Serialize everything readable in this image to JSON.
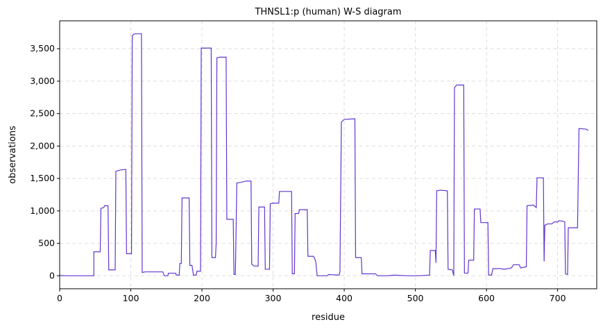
{
  "chart_data": {
    "type": "line",
    "title": "THNSL1:p (human) W-S diagram",
    "xlabel": "residue",
    "ylabel": "observations",
    "color": "#6035d0",
    "grid": true,
    "x": [
      0,
      10,
      48,
      48,
      57,
      58,
      62,
      63,
      68,
      69,
      78,
      79,
      85,
      93,
      94,
      101,
      102,
      105,
      115,
      116,
      120,
      145,
      147,
      152,
      153,
      163,
      164,
      168,
      169,
      171,
      172,
      182,
      183,
      186,
      188,
      192,
      193,
      198,
      199,
      213,
      214,
      219,
      220,
      221,
      225,
      234,
      235,
      244,
      245,
      247,
      249,
      255,
      262,
      269,
      270,
      273,
      279,
      280,
      288,
      289,
      295,
      296,
      300,
      308,
      309,
      326,
      327,
      330,
      331,
      336,
      337,
      348,
      349,
      357,
      360,
      362,
      376,
      378,
      393,
      394,
      396,
      400,
      415,
      416,
      424,
      425,
      444,
      447,
      460,
      470,
      490,
      505,
      520,
      521,
      528,
      529,
      530,
      535,
      545,
      546,
      552,
      554,
      555,
      558,
      568,
      569,
      574,
      575,
      582,
      583,
      591,
      592,
      602,
      603,
      607,
      609,
      620,
      625,
      635,
      638,
      646,
      648,
      656,
      657,
      666,
      670,
      671,
      680,
      681,
      682,
      686,
      692,
      695,
      700,
      702,
      708,
      710,
      711,
      714,
      715,
      728,
      730,
      740,
      743
    ],
    "values": [
      5,
      0,
      0,
      370,
      370,
      1040,
      1050,
      1080,
      1080,
      90,
      90,
      1610,
      1630,
      1640,
      340,
      340,
      3700,
      3730,
      3730,
      50,
      60,
      60,
      0,
      0,
      40,
      40,
      10,
      10,
      190,
      190,
      1200,
      1200,
      160,
      160,
      10,
      10,
      70,
      70,
      3510,
      3510,
      280,
      280,
      500,
      3360,
      3370,
      3370,
      870,
      870,
      20,
      20,
      1430,
      1440,
      1460,
      1460,
      180,
      150,
      150,
      1060,
      1060,
      100,
      100,
      1110,
      1120,
      1120,
      1300,
      1300,
      30,
      30,
      960,
      960,
      1020,
      1020,
      300,
      300,
      220,
      0,
      0,
      20,
      10,
      70,
      2370,
      2410,
      2420,
      280,
      280,
      30,
      30,
      0,
      0,
      10,
      0,
      0,
      10,
      390,
      390,
      200,
      1310,
      1320,
      1310,
      100,
      90,
      0,
      2900,
      2940,
      2940,
      40,
      40,
      240,
      240,
      1030,
      1030,
      820,
      820,
      10,
      10,
      110,
      110,
      100,
      120,
      170,
      170,
      120,
      140,
      1080,
      1090,
      1050,
      1510,
      1510,
      220,
      780,
      800,
      800,
      830,
      830,
      850,
      840,
      830,
      30,
      20,
      740,
      740,
      2270,
      2260,
      2240
    ],
    "xlim": [
      0,
      755
    ],
    "xticks": [
      0,
      100,
      200,
      300,
      400,
      500,
      600,
      700
    ],
    "ylim": [
      -200,
      3930
    ],
    "yticks": [
      0,
      500,
      {
        "value": 1000,
        "label": "1,000"
      },
      {
        "value": 1500,
        "label": "1,500"
      },
      {
        "value": 2000,
        "label": "2,000"
      },
      {
        "value": 2500,
        "label": "2,500"
      },
      {
        "value": 3000,
        "label": "3,000"
      },
      {
        "value": 3500,
        "label": "3,500"
      }
    ]
  }
}
